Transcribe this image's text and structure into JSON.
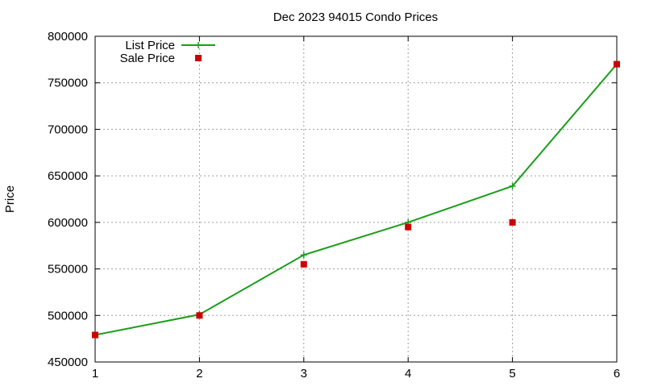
{
  "chart_data": {
    "type": "line",
    "title": "Dec 2023 94015 Condo Prices",
    "xlabel": "",
    "ylabel": "Price",
    "xlim": [
      1,
      6
    ],
    "ylim": [
      450000,
      800000
    ],
    "xticks": [
      1,
      2,
      3,
      4,
      5,
      6
    ],
    "yticks": [
      450000,
      500000,
      550000,
      600000,
      650000,
      700000,
      750000,
      800000
    ],
    "grid": true,
    "legend_position": "top-left",
    "series": [
      {
        "name": "List Price",
        "style": "line-with-plus-markers",
        "color": "#1a9e1a",
        "x": [
          1,
          2,
          3,
          4,
          5,
          6
        ],
        "y": [
          479000,
          501000,
          565000,
          600000,
          639000,
          770000
        ]
      },
      {
        "name": "Sale Price",
        "style": "square-markers",
        "color": "#cc0000",
        "x": [
          1,
          2,
          3,
          4,
          5,
          6
        ],
        "y": [
          479000,
          500000,
          555000,
          595000,
          600000,
          770000
        ]
      }
    ]
  }
}
